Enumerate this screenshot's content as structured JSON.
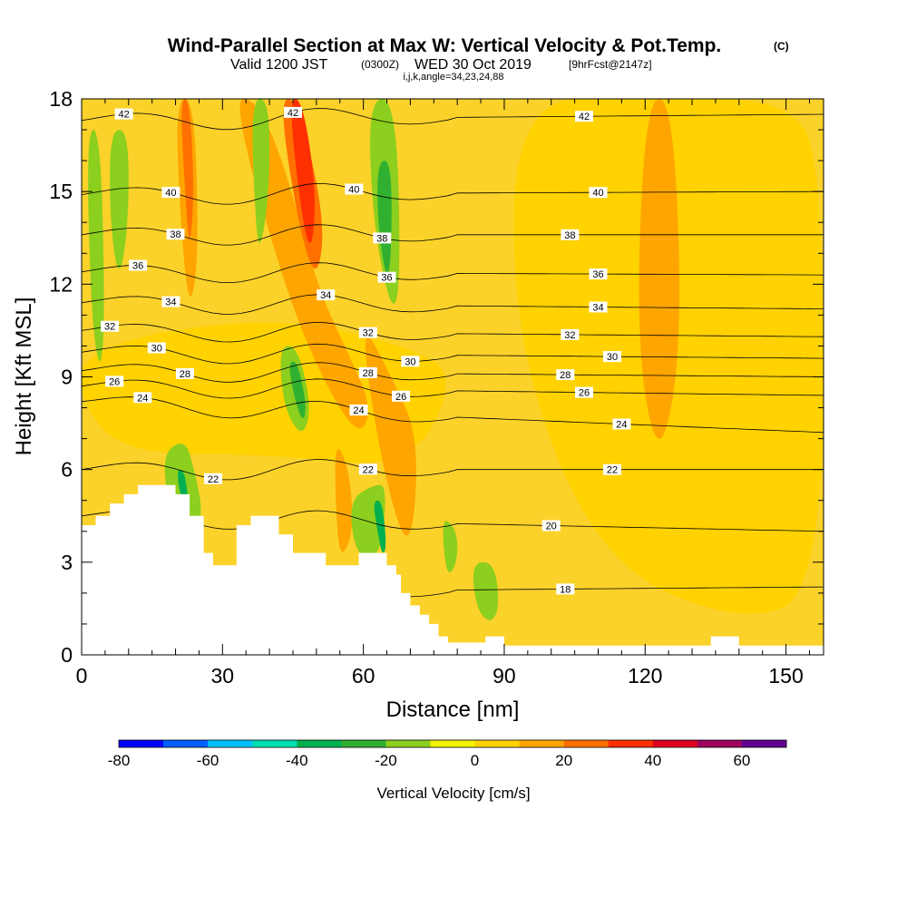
{
  "chart_data": {
    "type": "heatmap",
    "title": "Wind-Parallel Section at Max W: Vertical Velocity & Pot.Temp.",
    "title_mark": "(C)",
    "subtitle_main": "Valid 1200 JST",
    "subtitle_zulu": "(0300Z)",
    "subtitle_date": "WED 30 Oct 2019",
    "subtitle_fcst": "[9hrFcst@2147z]",
    "subtitle_indices": "i,j,k,angle=34,23,24,88",
    "xlabel": "Distance [nm]",
    "ylabel": "Height [Kft MSL]",
    "xlim": [
      0,
      158
    ],
    "ylim": [
      0,
      18
    ],
    "x_ticks": [
      "0",
      "30",
      "60",
      "90",
      "120",
      "150"
    ],
    "x_tick_values": [
      0,
      30,
      60,
      90,
      120,
      150
    ],
    "y_ticks": [
      "0",
      "3",
      "6",
      "9",
      "12",
      "15",
      "18"
    ],
    "y_tick_values": [
      0,
      3,
      6,
      9,
      12,
      15,
      18
    ],
    "colorbar": {
      "label": "Vertical Velocity [cm/s]",
      "min": -80,
      "max": 70,
      "step": 10,
      "tick_labels": [
        "-80",
        "-60",
        "-40",
        "-20",
        "0",
        "20",
        "40",
        "60"
      ],
      "tick_values": [
        -80,
        -60,
        -40,
        -20,
        0,
        20,
        40,
        60
      ],
      "colors": [
        "#0000ff",
        "#0060ff",
        "#00c0ff",
        "#00e0b0",
        "#00b050",
        "#30b030",
        "#8ccf1e",
        "#f2f200",
        "#ffd200",
        "#ffa500",
        "#ff7000",
        "#ff3000",
        "#e00020",
        "#a00060",
        "#600090"
      ]
    },
    "background_color": "#fbd22a",
    "terrain": {
      "x": [
        0,
        3,
        3,
        6,
        6,
        9,
        9,
        12,
        12,
        16,
        16,
        20,
        20,
        23,
        23,
        26,
        26,
        28,
        28,
        33,
        33,
        36,
        36,
        42,
        42,
        45,
        45,
        50,
        50,
        52,
        52,
        59,
        59,
        65,
        65,
        67,
        67,
        68,
        68,
        70,
        70,
        72,
        72,
        74,
        74,
        76,
        76,
        78,
        78,
        80,
        80,
        82,
        82,
        86,
        86,
        90,
        90,
        134,
        134,
        140,
        140,
        158
      ],
      "y": [
        4.2,
        4.2,
        4.5,
        4.5,
        4.9,
        4.9,
        5.2,
        5.2,
        5.5,
        5.5,
        5.5,
        5.5,
        5.2,
        5.2,
        4.5,
        4.5,
        3.3,
        3.3,
        2.9,
        2.9,
        4.2,
        4.2,
        4.5,
        4.5,
        3.9,
        3.9,
        3.3,
        3.3,
        3.3,
        3.3,
        2.9,
        2.9,
        3.3,
        3.3,
        2.9,
        2.9,
        2.6,
        2.6,
        2.0,
        2.0,
        1.6,
        1.6,
        1.3,
        1.3,
        1.0,
        1.0,
        0.6,
        0.6,
        0.4,
        0.4,
        0.4,
        0.4,
        0.4,
        0.4,
        0.6,
        0.6,
        0.3,
        0.3,
        0.6,
        0.6,
        0.3,
        0.3
      ]
    },
    "velocity_regions": [
      {
        "value": 5,
        "x": [
          92,
          120,
          150,
          158,
          158,
          140,
          110,
          92
        ],
        "y": [
          18,
          18,
          18,
          16,
          2,
          1,
          3,
          10
        ]
      },
      {
        "value": 5,
        "x": [
          0,
          10,
          40,
          70,
          80,
          70,
          40,
          0
        ],
        "y": [
          8,
          6.5,
          6.5,
          6,
          9,
          10,
          11,
          10
        ]
      },
      {
        "value": 15,
        "x": [
          32,
          37,
          43,
          50,
          56,
          62,
          59,
          51,
          43
        ],
        "y": [
          18,
          18,
          16,
          12,
          10,
          8,
          7,
          9,
          12
        ]
      },
      {
        "value": 15,
        "x": [
          59,
          66,
          72,
          70,
          64
        ],
        "y": [
          11,
          9,
          7,
          3,
          6
        ]
      },
      {
        "value": 25,
        "x": [
          42,
          46,
          52,
          50,
          46
        ],
        "y": [
          18,
          18,
          14,
          12,
          14
        ]
      },
      {
        "value": 35,
        "x": [
          44,
          47,
          50,
          49,
          47
        ],
        "y": [
          18,
          18,
          15,
          13,
          14
        ]
      },
      {
        "value": 15,
        "x": [
          20,
          24,
          25,
          23,
          21
        ],
        "y": [
          18,
          18,
          13,
          11,
          14
        ]
      },
      {
        "value": 25,
        "x": [
          21,
          23,
          24,
          23,
          22
        ],
        "y": [
          18,
          18,
          15,
          13,
          15
        ]
      },
      {
        "value": 15,
        "x": [
          54,
          57,
          58,
          55,
          54
        ],
        "y": [
          7,
          6,
          4,
          3,
          5
        ]
      },
      {
        "value": 15,
        "x": [
          120,
          126,
          128,
          123,
          118
        ],
        "y": [
          18,
          18,
          10,
          6,
          10
        ]
      },
      {
        "value": -15,
        "x": [
          1,
          4,
          5,
          4,
          2
        ],
        "y": [
          17,
          17,
          11,
          9,
          11
        ]
      },
      {
        "value": -15,
        "x": [
          6,
          10,
          10,
          8,
          6
        ],
        "y": [
          17,
          17,
          14,
          12,
          14
        ]
      },
      {
        "value": -15,
        "x": [
          36,
          40,
          40,
          38,
          37
        ],
        "y": [
          18,
          18,
          15,
          13,
          14
        ]
      },
      {
        "value": -15,
        "x": [
          61,
          67,
          68,
          66,
          62
        ],
        "y": [
          18,
          18,
          12,
          11,
          14
        ]
      },
      {
        "value": -25,
        "x": [
          63,
          66,
          66,
          65,
          63
        ],
        "y": [
          16,
          16,
          13,
          12,
          14
        ]
      },
      {
        "value": -15,
        "x": [
          42,
          46,
          49,
          47,
          43
        ],
        "y": [
          10,
          10,
          8,
          7,
          8
        ]
      },
      {
        "value": -25,
        "x": [
          44,
          46,
          48,
          47,
          45
        ],
        "y": [
          9.5,
          9.5,
          8,
          7.5,
          8.5
        ]
      },
      {
        "value": -15,
        "x": [
          17,
          22,
          24,
          26,
          23,
          19
        ],
        "y": [
          6.5,
          7,
          6,
          4.5,
          3.5,
          4.5
        ]
      },
      {
        "value": -35,
        "x": [
          20,
          22,
          23,
          22
        ],
        "y": [
          6,
          6,
          4.5,
          4.5
        ]
      },
      {
        "value": -15,
        "x": [
          57,
          62,
          65,
          64,
          61,
          58
        ],
        "y": [
          5,
          5.5,
          5.5,
          3.5,
          3,
          3.5
        ]
      },
      {
        "value": -35,
        "x": [
          62,
          64,
          65,
          64,
          63
        ],
        "y": [
          5,
          5,
          3.5,
          3.2,
          4
        ]
      },
      {
        "value": -15,
        "x": [
          77,
          80,
          80,
          78,
          77
        ],
        "y": [
          4.5,
          4,
          3,
          2.5,
          3.5
        ]
      },
      {
        "value": -15,
        "x": [
          83,
          88,
          89,
          87,
          84
        ],
        "y": [
          3,
          3,
          1.5,
          1,
          1.5
        ]
      }
    ],
    "isentropes": [
      {
        "label": "42",
        "y_left": 17.3,
        "y_right": 17.5,
        "label_x": [
          9,
          45,
          107
        ]
      },
      {
        "label": "40",
        "y_left": 14.9,
        "y_right": 15.0,
        "label_x": [
          19,
          58,
          110
        ]
      },
      {
        "label": "38",
        "y_left": 13.6,
        "y_right": 13.6,
        "label_x": [
          20,
          64,
          104
        ]
      },
      {
        "label": "36",
        "y_left": 12.4,
        "y_right": 12.3,
        "label_x": [
          12,
          65,
          110
        ]
      },
      {
        "label": "34",
        "y_left": 11.4,
        "y_right": 11.2,
        "label_x": [
          19,
          52,
          110
        ]
      },
      {
        "label": "32",
        "y_left": 10.5,
        "y_right": 10.3,
        "label_x": [
          6,
          61,
          104
        ]
      },
      {
        "label": "30",
        "y_left": 9.8,
        "y_right": 9.6,
        "label_x": [
          16,
          70,
          113
        ]
      },
      {
        "label": "28",
        "y_left": 9.2,
        "y_right": 9.0,
        "label_x": [
          22,
          61,
          103
        ]
      },
      {
        "label": "26",
        "y_left": 8.7,
        "y_right": 8.4,
        "label_x": [
          7,
          68,
          107
        ]
      },
      {
        "label": "24",
        "y_left": 8.2,
        "y_right": 7.2,
        "label_x": [
          13,
          59,
          115
        ]
      },
      {
        "label": "22",
        "y_left": 6.0,
        "y_right": 6.0,
        "label_x": [
          28,
          61,
          113
        ]
      },
      {
        "label": "20",
        "y_left": 4.5,
        "y_right": 4.0,
        "label_x": [
          100
        ]
      },
      {
        "label": "18",
        "y_left": 2.0,
        "y_right": 2.2,
        "label_x": [
          103
        ]
      }
    ]
  }
}
